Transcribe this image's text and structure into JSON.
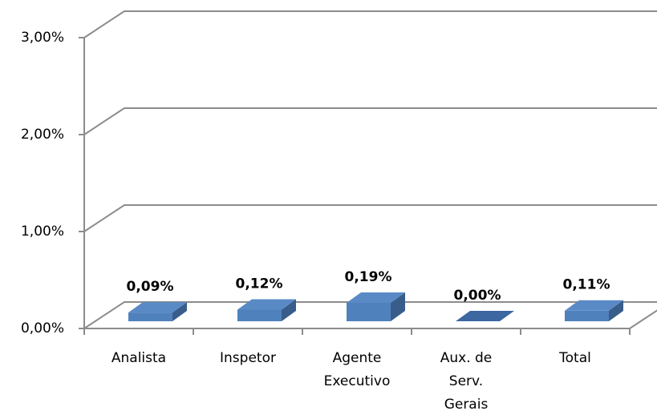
{
  "chart_data": {
    "type": "bar3d",
    "categories": [
      "Analista",
      "Inspetor",
      "Agente Executivo",
      "Aux. de Serv. Gerais",
      "Total"
    ],
    "values": [
      0.09,
      0.12,
      0.19,
      0.0,
      0.11
    ],
    "value_labels": [
      "0,09%",
      "0,12%",
      "0,19%",
      "0,00%",
      "0,11%"
    ],
    "color": "#4f81bd",
    "ylim": [
      0,
      3
    ],
    "yticks": [
      {
        "value": 0,
        "label": "0,00%"
      },
      {
        "value": 1,
        "label": "1,00%"
      },
      {
        "value": 2,
        "label": "2,00%"
      },
      {
        "value": 3,
        "label": "3,00%"
      }
    ],
    "grid": true
  }
}
